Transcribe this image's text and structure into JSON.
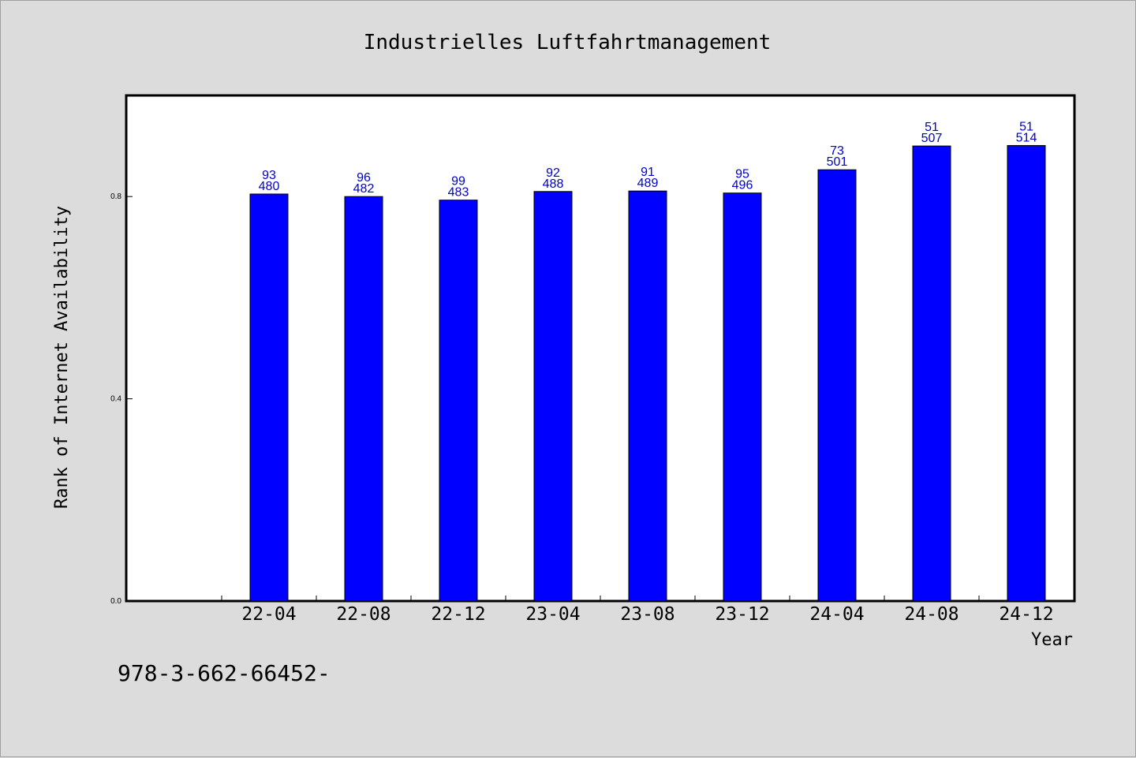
{
  "chart_data": {
    "type": "bar",
    "title": "Industrielles Luftfahrtmanagement",
    "xlabel": "Year",
    "ylabel": "Rank of Internet Availability",
    "categories": [
      "22-04",
      "22-08",
      "22-12",
      "23-04",
      "23-08",
      "23-12",
      "24-04",
      "24-08",
      "24-12"
    ],
    "values": [
      0.805,
      0.8,
      0.793,
      0.81,
      0.811,
      0.807,
      0.853,
      0.9,
      0.901
    ],
    "label_top": [
      "93",
      "96",
      "99",
      "92",
      "91",
      "95",
      "73",
      "51",
      "51"
    ],
    "label_bottom": [
      "480",
      "482",
      "483",
      "488",
      "489",
      "496",
      "501",
      "507",
      "514"
    ],
    "yticks": [
      "0.0",
      "0.4",
      "0.8"
    ],
    "ylim": [
      0,
      1.0
    ],
    "grid": false,
    "bar_color": "#0000ff",
    "label_color": "#0000cc"
  },
  "footer": "978-3-662-66452-"
}
